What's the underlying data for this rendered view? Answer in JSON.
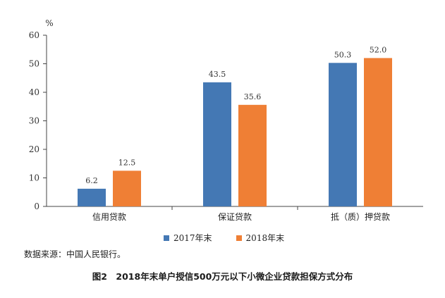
{
  "chart_data": {
    "type": "bar",
    "categories": [
      "信用贷款",
      "保证贷款",
      "抵（质）押贷款"
    ],
    "series": [
      {
        "name": "2017年末",
        "values": [
          6.2,
          43.5,
          50.3
        ],
        "color": "#4478b4"
      },
      {
        "name": "2018年末",
        "values": [
          12.5,
          35.6,
          52.0
        ],
        "color": "#ef7f35"
      }
    ],
    "value_labels": [
      [
        "6.2",
        "43.5",
        "50.3"
      ],
      [
        "12.5",
        "35.6",
        "52.0"
      ]
    ],
    "ylabel": "%",
    "ylim": [
      0,
      60
    ],
    "yticks": [
      0,
      10,
      20,
      30,
      40,
      50,
      60
    ],
    "legend_position": "bottom",
    "grid": false
  },
  "source_text": "数据来源：中国人民银行。",
  "caption": "图2　2018年末单户授信500万元以下小微企业贷款担保方式分布"
}
